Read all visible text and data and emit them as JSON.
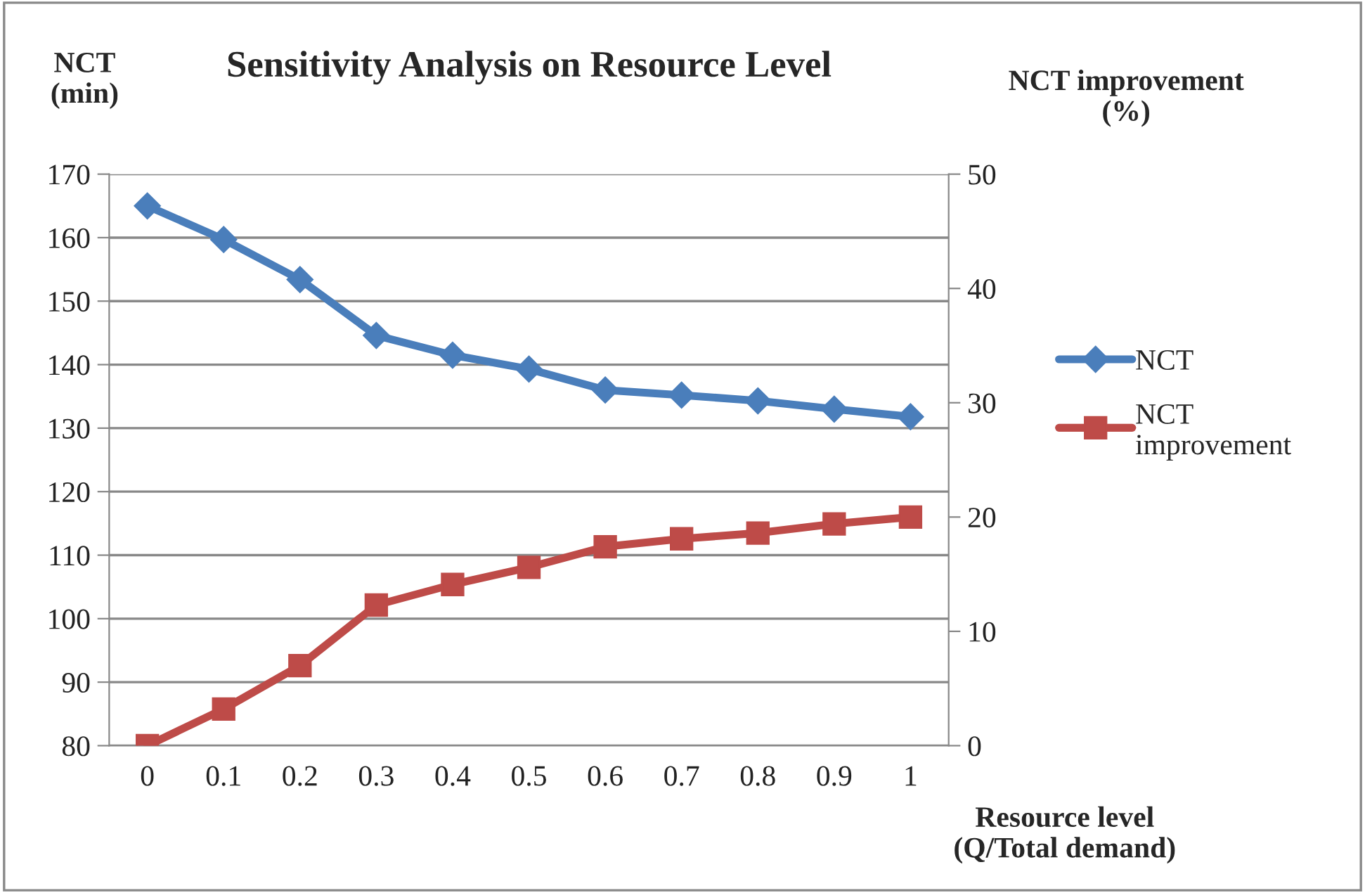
{
  "chart_data": {
    "type": "line",
    "title": "Sensitivity Analysis on Resource Level",
    "ylabel": "NCT\n(min)",
    "y2label": "NCT improvement\n(%)",
    "xlabel": "Resource level\n(Q/Total demand)",
    "categories": [
      "0",
      "0.1",
      "0.2",
      "0.3",
      "0.4",
      "0.5",
      "0.6",
      "0.7",
      "0.8",
      "0.9",
      "1"
    ],
    "series": [
      {
        "name": "NCT",
        "color": "#4a7ebb",
        "marker": "diamond",
        "values": [
          165,
          159.7,
          153.4,
          144.6,
          141.5,
          139.3,
          136.0,
          135.2,
          134.3,
          133.0,
          131.8
        ]
      },
      {
        "name": "NCT improvement",
        "color": "#be4b48",
        "marker": "square",
        "axis": "y2",
        "values": [
          0,
          3.2,
          7.0,
          12.3,
          14.1,
          15.6,
          17.4,
          18.1,
          18.6,
          19.4,
          20.0
        ]
      }
    ],
    "ylim": [
      80,
      170
    ],
    "yticks": [
      80,
      90,
      100,
      110,
      120,
      130,
      140,
      150,
      160,
      170
    ],
    "y2lim": [
      0,
      50
    ],
    "y2ticks": [
      0,
      10,
      20,
      30,
      40,
      50
    ],
    "grid": "y",
    "legend": "right",
    "line_style": "solid"
  }
}
